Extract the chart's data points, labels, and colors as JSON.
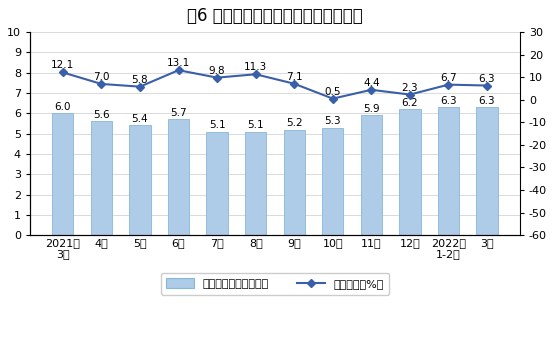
{
  "title": "图6 规模以上工业天然气产量月度走势",
  "categories": [
    "2021年\n3月",
    "4月",
    "5月",
    "6月",
    "7月",
    "8月",
    "9月",
    "10月",
    "11月",
    "12月",
    "2022年\n1-2月",
    "3月"
  ],
  "bar_values": [
    6.0,
    5.6,
    5.4,
    5.7,
    5.1,
    5.1,
    5.2,
    5.3,
    5.9,
    6.2,
    6.3,
    6.3
  ],
  "line_values": [
    12.1,
    7.0,
    5.8,
    13.1,
    9.8,
    11.3,
    7.1,
    0.5,
    4.4,
    2.3,
    6.7,
    6.3
  ],
  "bar_color": "#aecce8",
  "bar_edge_color": "#88b8d8",
  "line_color": "#3a5faa",
  "marker_color": "#3a5faa",
  "left_ylim": [
    0,
    10
  ],
  "left_yticks": [
    0,
    1,
    2,
    3,
    4,
    5,
    6,
    7,
    8,
    9,
    10
  ],
  "right_ylim": [
    -60,
    30
  ],
  "right_yticks": [
    -60,
    -50,
    -40,
    -30,
    -20,
    -10,
    0,
    10,
    20,
    30
  ],
  "legend_bar_label": "日均产量（亿立方米）",
  "legend_line_label": "当月增速（%）",
  "title_fontsize": 12,
  "tick_fontsize": 8,
  "value_fontsize": 7.5,
  "bg_color": "#f0f0f0"
}
